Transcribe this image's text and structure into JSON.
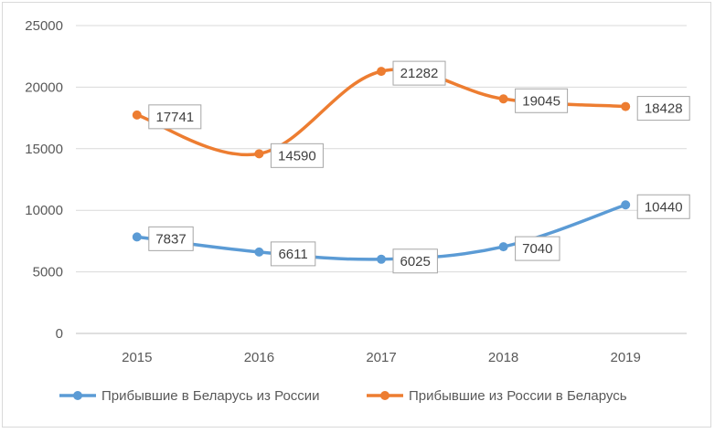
{
  "chart_data": {
    "type": "line",
    "categories": [
      "2015",
      "2016",
      "2017",
      "2018",
      "2019"
    ],
    "ylim": [
      0,
      25000
    ],
    "yticks": [
      "0",
      "5000",
      "10000",
      "15000",
      "20000",
      "25000"
    ],
    "grid": "horizontal",
    "legend_position": "bottom",
    "series": [
      {
        "name": "Прибывшие в Беларусь из России",
        "color": "#5b9bd5",
        "values": [
          7837,
          6611,
          6025,
          7040,
          10440
        ],
        "labels": [
          "7837",
          "6611",
          "6025",
          "7040",
          "10440"
        ]
      },
      {
        "name": "Прибывшие из России в Беларусь",
        "color": "#ed7d31",
        "values": [
          17741,
          14590,
          21282,
          19045,
          18428
        ],
        "labels": [
          "17741",
          "14590",
          "21282",
          "19045",
          "18428"
        ]
      }
    ]
  }
}
